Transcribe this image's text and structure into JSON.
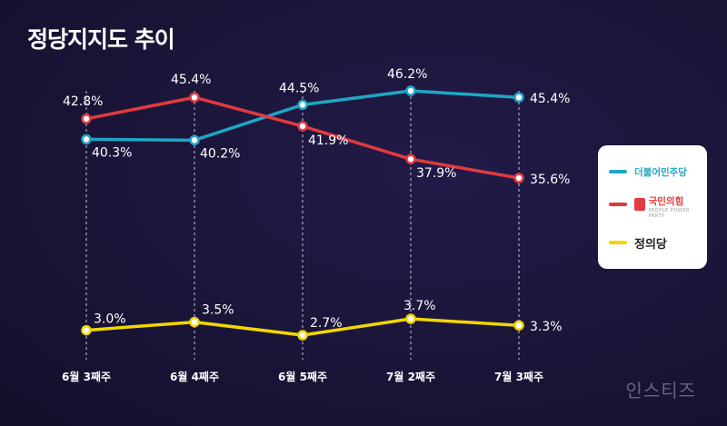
{
  "title": "정당지지도 추이",
  "watermark": "인스티즈",
  "legend": {
    "items": [
      {
        "label": "더불어민주당",
        "sub": "",
        "color": "#1fa6c4"
      },
      {
        "label": "국민의힘",
        "sub": "PEOPLE POWER PARTY",
        "color": "#e23a3f"
      },
      {
        "label": "정의당",
        "sub": "",
        "color": "#f2d600"
      }
    ]
  },
  "chart_data": {
    "type": "line",
    "title": "정당지지도 추이",
    "xlabel": "",
    "ylabel": "",
    "categories": [
      "6월 3째주",
      "6월 4째주",
      "6월 5째주",
      "7월 2째주",
      "7월 3째주"
    ],
    "value_labels": {
      "dp": [
        "40.3%",
        "40.2%",
        "44.5%",
        "46.2%",
        "45.4%"
      ],
      "ppp": [
        "42.8%",
        "45.4%",
        "41.9%",
        "37.9%",
        "35.6%"
      ],
      "jp": [
        "3.0%",
        "3.5%",
        "2.7%",
        "3.7%",
        "3.3%"
      ]
    },
    "series": [
      {
        "key": "dp",
        "name": "더불어민주당",
        "color": "#1fa6c4",
        "values": [
          40.3,
          40.2,
          44.5,
          46.2,
          45.4
        ]
      },
      {
        "key": "ppp",
        "name": "국민의힘",
        "color": "#e23a3f",
        "values": [
          42.8,
          45.4,
          41.9,
          37.9,
          35.6
        ]
      },
      {
        "key": "jp",
        "name": "정의당",
        "color": "#f2d600",
        "values": [
          3.0,
          3.5,
          2.7,
          3.7,
          3.3
        ]
      }
    ],
    "grid": false,
    "legend_position": "right",
    "colors": {
      "background": "#1a1538",
      "dot_fill": "#ffffff"
    }
  }
}
